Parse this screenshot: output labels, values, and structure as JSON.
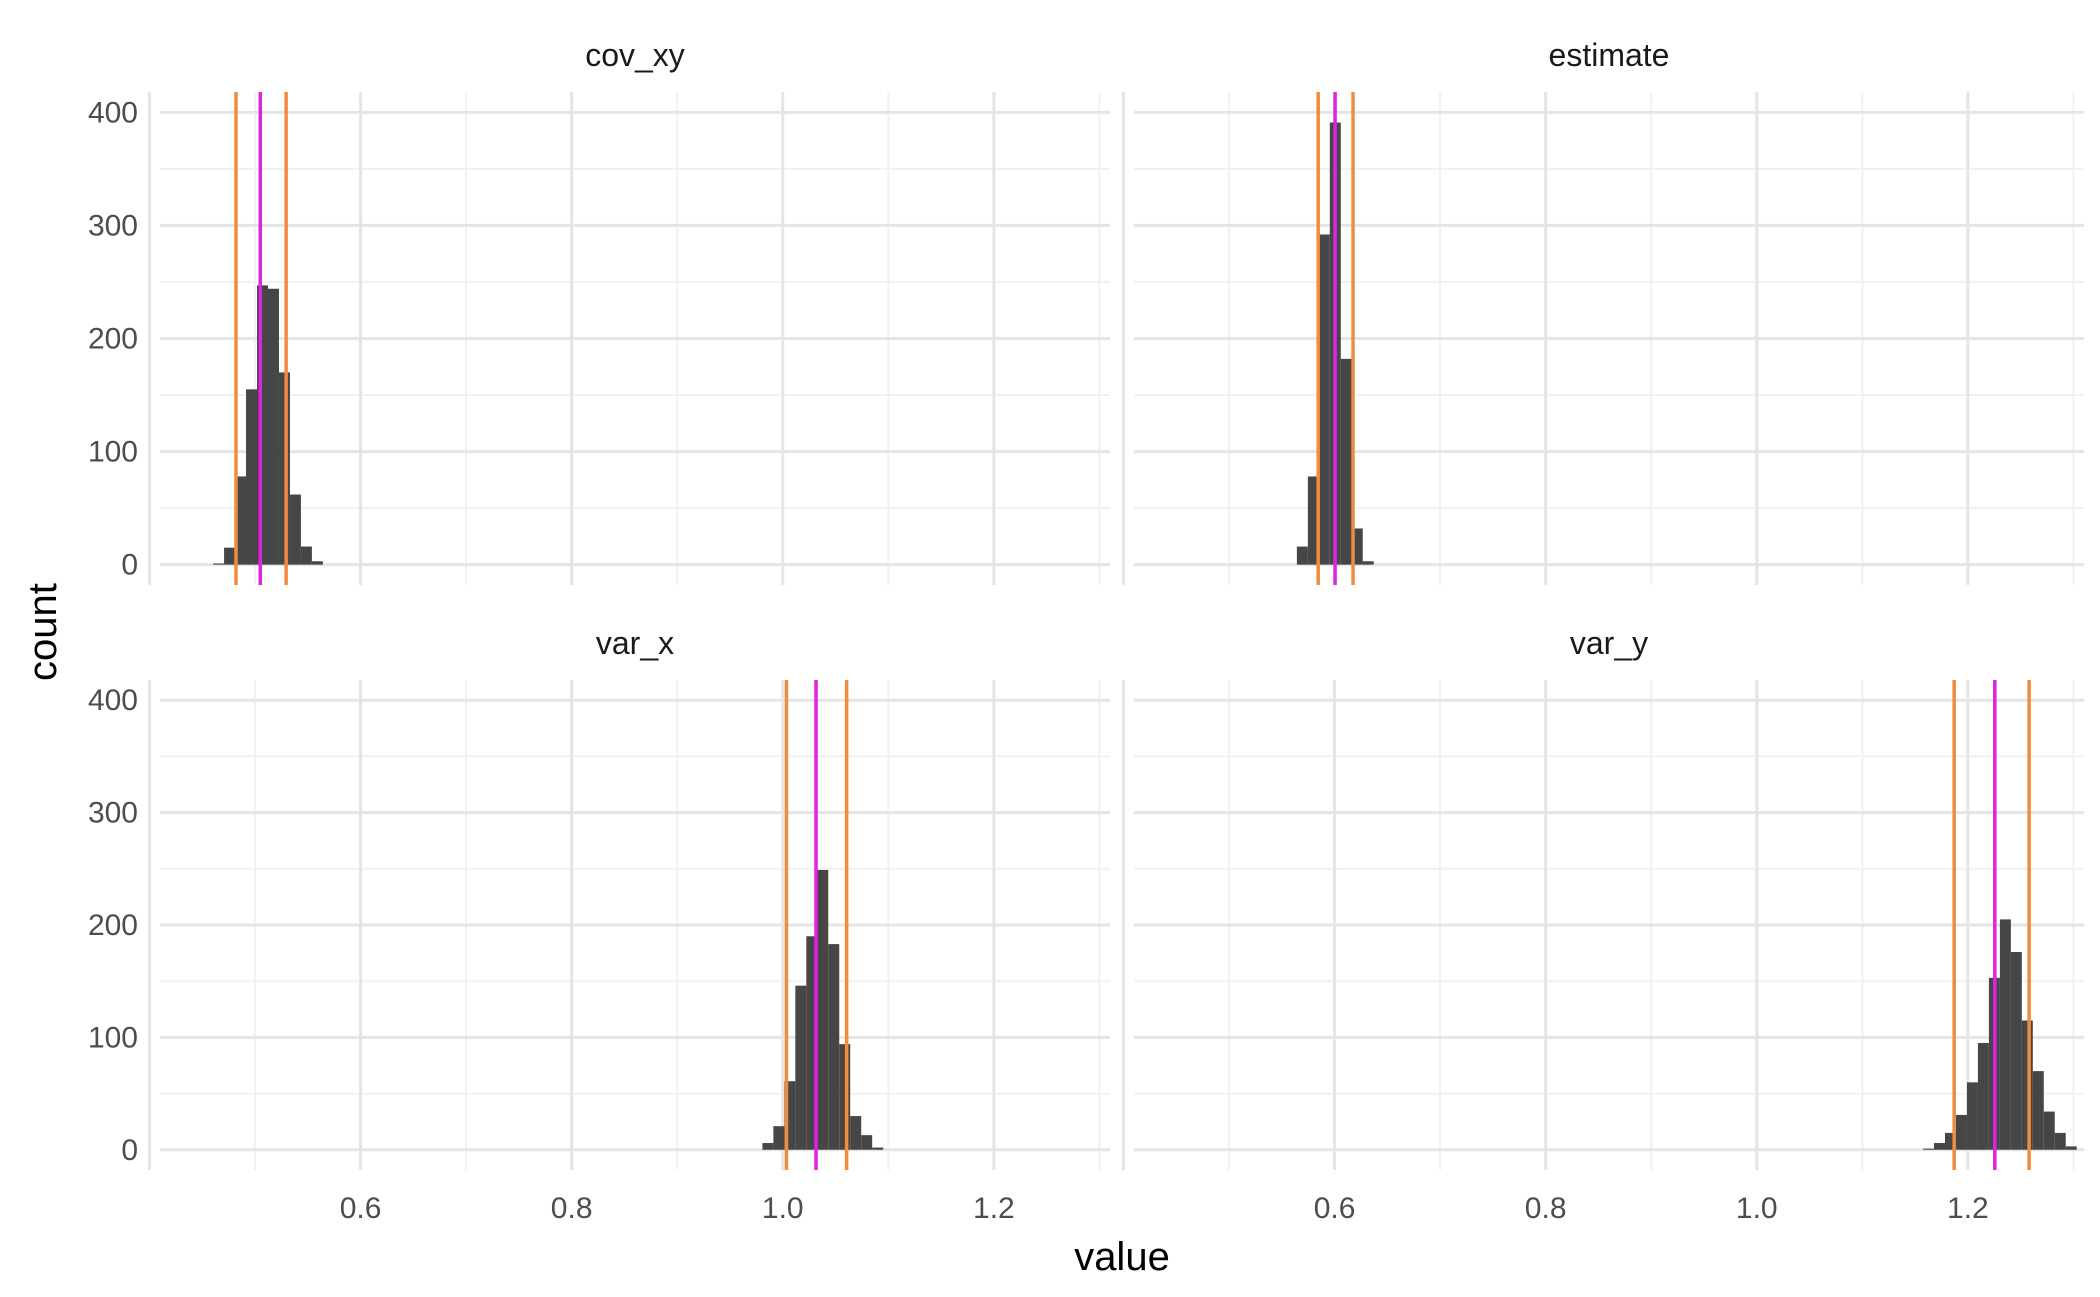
{
  "chart_data": {
    "type": "histogram",
    "layout": "facet-grid 2x2, shared axes",
    "xlabel": "value",
    "ylabel": "count",
    "xlim": [
      0.41,
      1.31
    ],
    "ylim": [
      -18,
      418
    ],
    "x_ticks": [
      0.6,
      0.8,
      1.0,
      1.2
    ],
    "x_tick_labels": [
      "0.6",
      "0.8",
      "1.0",
      "1.2"
    ],
    "y_ticks": [
      0,
      100,
      200,
      300,
      400
    ],
    "y_tick_labels": [
      "0",
      "100",
      "200",
      "300",
      "400"
    ],
    "bin_width": 0.0104,
    "grid": true,
    "colors": {
      "bar": "#464646",
      "ci_line": "#f28c3c",
      "point_line": "#e023e0",
      "grid_major": "#e5e5e5",
      "grid_minor": "#f1f1f1"
    },
    "panels": [
      {
        "title": "cov_xy",
        "bins": [
          {
            "x": 0.4655,
            "count": 1
          },
          {
            "x": 0.4759,
            "count": 15
          },
          {
            "x": 0.4863,
            "count": 78
          },
          {
            "x": 0.4967,
            "count": 155
          },
          {
            "x": 0.5071,
            "count": 247
          },
          {
            "x": 0.5175,
            "count": 244
          },
          {
            "x": 0.5279,
            "count": 170
          },
          {
            "x": 0.5383,
            "count": 62
          },
          {
            "x": 0.5487,
            "count": 16
          },
          {
            "x": 0.5591,
            "count": 3
          }
        ],
        "ci_lines": [
          0.482,
          0.5295
        ],
        "point_line": 0.505
      },
      {
        "title": "estimate",
        "bins": [
          {
            "x": 0.5695,
            "count": 16
          },
          {
            "x": 0.5799,
            "count": 78
          },
          {
            "x": 0.5903,
            "count": 292
          },
          {
            "x": 0.6007,
            "count": 391
          },
          {
            "x": 0.6111,
            "count": 182
          },
          {
            "x": 0.6215,
            "count": 32
          },
          {
            "x": 0.6319,
            "count": 3
          }
        ],
        "ci_lines": [
          0.5845,
          0.6175
        ],
        "point_line": 0.6005
      },
      {
        "title": "var_x",
        "bins": [
          {
            "x": 0.9859,
            "count": 6
          },
          {
            "x": 0.9963,
            "count": 21
          },
          {
            "x": 1.0067,
            "count": 61
          },
          {
            "x": 1.0171,
            "count": 146
          },
          {
            "x": 1.0275,
            "count": 190
          },
          {
            "x": 1.0379,
            "count": 249
          },
          {
            "x": 1.0483,
            "count": 183
          },
          {
            "x": 1.0587,
            "count": 94
          },
          {
            "x": 1.0691,
            "count": 30
          },
          {
            "x": 1.0795,
            "count": 13
          },
          {
            "x": 1.0899,
            "count": 2
          }
        ],
        "ci_lines": [
          1.0035,
          1.0605
        ],
        "point_line": 1.0315
      },
      {
        "title": "var_y",
        "bins": [
          {
            "x": 1.1627,
            "count": 1
          },
          {
            "x": 1.1731,
            "count": 6
          },
          {
            "x": 1.1835,
            "count": 15
          },
          {
            "x": 1.1939,
            "count": 31
          },
          {
            "x": 1.2043,
            "count": 60
          },
          {
            "x": 1.2147,
            "count": 95
          },
          {
            "x": 1.2251,
            "count": 153
          },
          {
            "x": 1.2355,
            "count": 205
          },
          {
            "x": 1.2459,
            "count": 176
          },
          {
            "x": 1.2563,
            "count": 115
          },
          {
            "x": 1.2667,
            "count": 70
          },
          {
            "x": 1.2771,
            "count": 34
          },
          {
            "x": 1.2875,
            "count": 15
          },
          {
            "x": 1.2979,
            "count": 3
          }
        ],
        "ci_lines": [
          1.187,
          1.258
        ],
        "point_line": 1.2255
      }
    ]
  }
}
